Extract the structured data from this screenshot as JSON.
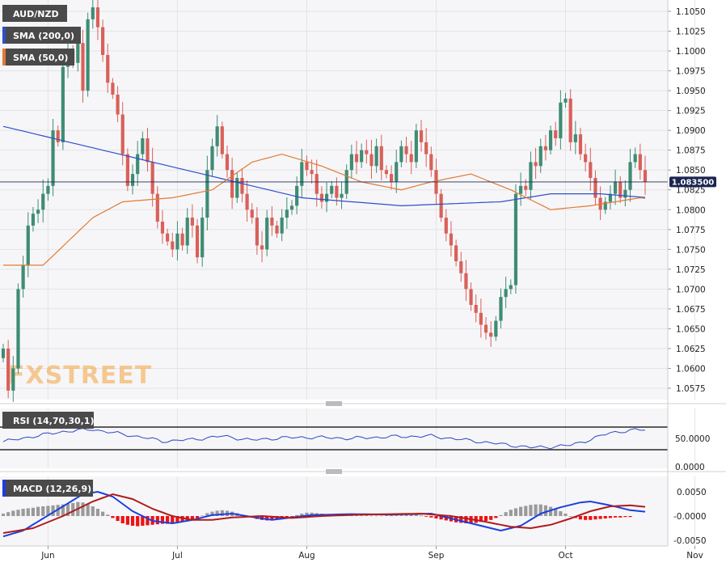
{
  "chart_data": {
    "type": "candlestick",
    "symbol": "AUD/NZD",
    "indicators": {
      "sma200_label": "SMA (200,0)",
      "sma50_label": "SMA (50,0)",
      "rsi_label": "RSI (14,70,30,1)",
      "macd_label": "MACD (12,26,9)"
    },
    "last_price_label": "1.083500",
    "last_price": 1.0835,
    "price_axis": {
      "min": 1.0555,
      "max": 1.1063,
      "ticks": [
        1.105,
        1.1025,
        1.1,
        1.0975,
        1.095,
        1.0925,
        1.09,
        1.0875,
        1.085,
        1.0825,
        1.08,
        1.0775,
        1.075,
        1.0725,
        1.07,
        1.0675,
        1.065,
        1.0625,
        1.06,
        1.0575
      ],
      "tick_labels": [
        "1.1050",
        "1.1025",
        "1.1000",
        "1.0975",
        "1.0950",
        "1.0925",
        "1.0900",
        "1.0875",
        "1.0850",
        "1.0825",
        "1.0800",
        "1.0775",
        "1.0750",
        "1.0725",
        "1.0700",
        "1.0675",
        "1.0650",
        "1.0625",
        "1.0600",
        "1.0575"
      ]
    },
    "x_axis": {
      "labels": [
        "Jun",
        "Jul",
        "Aug",
        "Sep",
        "Oct",
        "Nov"
      ],
      "label_bar_index": [
        9,
        35,
        61,
        87,
        113,
        139
      ]
    },
    "closes": [
      1.0625,
      1.0572,
      1.06,
      1.07,
      1.073,
      1.078,
      1.0795,
      1.08,
      1.082,
      1.083,
      1.09,
      1.0885,
      1.098,
      1.1,
      1.0985,
      1.101,
      1.095,
      1.104,
      1.1055,
      1.103,
      1.0995,
      1.096,
      1.0945,
      1.092,
      1.087,
      1.083,
      1.0845,
      1.087,
      1.089,
      1.086,
      1.082,
      1.0785,
      1.077,
      1.076,
      1.075,
      1.077,
      1.0755,
      1.079,
      1.078,
      1.074,
      1.079,
      1.085,
      1.088,
      1.0905,
      1.087,
      1.085,
      1.0815,
      1.084,
      1.082,
      1.08,
      1.079,
      1.0755,
      1.075,
      1.079,
      1.078,
      1.077,
      1.079,
      1.08,
      1.0805,
      1.083,
      1.086,
      1.085,
      1.0845,
      1.082,
      1.081,
      1.082,
      1.083,
      1.0815,
      1.082,
      1.085,
      1.087,
      1.086,
      1.0875,
      1.087,
      1.0855,
      1.088,
      1.085,
      1.0845,
      1.0835,
      1.086,
      1.088,
      1.087,
      1.086,
      1.09,
      1.0885,
      1.087,
      1.085,
      1.082,
      1.079,
      1.077,
      1.0755,
      1.0735,
      1.072,
      1.07,
      1.068,
      1.067,
      1.0655,
      1.0645,
      1.064,
      1.066,
      1.069,
      1.07,
      1.0705,
      1.082,
      1.083,
      1.0825,
      1.086,
      1.0855,
      1.088,
      1.0875,
      1.09,
      1.089,
      1.0935,
      1.094,
      1.0885,
      1.0895,
      1.087,
      1.086,
      1.084,
      1.0815,
      1.08,
      1.081,
      1.082,
      1.0835,
      1.0815,
      1.0825,
      1.086,
      1.087,
      1.085,
      1.0835
    ],
    "sma200_anchors": [
      [
        0,
        1.0905
      ],
      [
        20,
        1.0875
      ],
      [
        40,
        1.0845
      ],
      [
        60,
        1.0815
      ],
      [
        80,
        1.0805
      ],
      [
        100,
        1.081
      ],
      [
        110,
        1.082
      ],
      [
        120,
        1.082
      ],
      [
        130,
        1.0815
      ],
      [
        140,
        1.0812
      ],
      [
        148,
        1.081
      ]
    ],
    "sma50_anchors": [
      [
        0,
        1.073
      ],
      [
        8,
        1.073
      ],
      [
        18,
        1.079
      ],
      [
        24,
        1.081
      ],
      [
        34,
        1.0815
      ],
      [
        42,
        1.0825
      ],
      [
        50,
        1.086
      ],
      [
        56,
        1.087
      ],
      [
        64,
        1.0855
      ],
      [
        72,
        1.0835
      ],
      [
        80,
        1.0825
      ],
      [
        86,
        1.0835
      ],
      [
        94,
        1.0845
      ],
      [
        102,
        1.0825
      ],
      [
        110,
        1.08
      ],
      [
        118,
        1.0805
      ],
      [
        128,
        1.0815
      ],
      [
        136,
        1.081
      ],
      [
        142,
        1.0805
      ],
      [
        148,
        1.0805
      ]
    ],
    "rsi": {
      "axis_labels": [
        "50.0000",
        "0.0000"
      ],
      "overbought": 70,
      "oversold": 30,
      "anchors": [
        [
          0,
          44
        ],
        [
          5,
          52
        ],
        [
          12,
          62
        ],
        [
          18,
          66
        ],
        [
          22,
          60
        ],
        [
          28,
          52
        ],
        [
          32,
          45
        ],
        [
          38,
          48
        ],
        [
          44,
          54
        ],
        [
          50,
          47
        ],
        [
          56,
          51
        ],
        [
          62,
          52
        ],
        [
          70,
          50
        ],
        [
          78,
          53
        ],
        [
          86,
          54
        ],
        [
          94,
          46
        ],
        [
          100,
          40
        ],
        [
          106,
          34
        ],
        [
          110,
          35
        ],
        [
          114,
          38
        ],
        [
          118,
          48
        ],
        [
          122,
          60
        ],
        [
          126,
          64
        ],
        [
          130,
          66
        ],
        [
          134,
          62
        ],
        [
          138,
          56
        ],
        [
          142,
          50
        ],
        [
          146,
          51
        ],
        [
          148,
          50
        ]
      ]
    },
    "macd": {
      "axis_labels": [
        "0.0050",
        "-0.0000",
        "-0.0050"
      ],
      "zero_label": "-0.0000",
      "histogram": [
        0.0005,
        0.0008,
        0.0011,
        0.0013,
        0.0015,
        0.0016,
        0.0017,
        0.0019,
        0.002,
        0.0021,
        0.0022,
        0.0023,
        0.0024,
        0.0026,
        0.0027,
        0.0029,
        0.0028,
        0.0025,
        0.002,
        0.0015,
        0.0009,
        0.0003,
        -0.0004,
        -0.001,
        -0.0015,
        -0.0018,
        -0.002,
        -0.0021,
        -0.002,
        -0.0019,
        -0.0018,
        -0.0017,
        -0.0016,
        -0.0016,
        -0.0015,
        -0.0013,
        -0.0011,
        -0.0009,
        -0.0007,
        -0.0004,
        0.0001,
        0.0006,
        0.0009,
        0.0011,
        0.0012,
        0.0011,
        0.0009,
        0.0006,
        0.0003,
        0.0,
        -0.0003,
        -0.0006,
        -0.0008,
        -0.0009,
        -0.0008,
        -0.0007,
        -0.0005,
        -0.0003,
        -0.0001,
        0.0002,
        0.0005,
        0.0007,
        0.0007,
        0.0006,
        0.0005,
        0.0004,
        0.0004,
        0.0004,
        0.0003,
        0.0003,
        0.0003,
        0.0002,
        0.0002,
        0.0002,
        0.0001,
        0.0001,
        0.0001,
        0.0002,
        0.0002,
        0.0003,
        0.0003,
        0.0004,
        0.0004,
        0.0003,
        0.0001,
        -0.0001,
        -0.0003,
        -0.0005,
        -0.0007,
        -0.0009,
        -0.0011,
        -0.0013,
        -0.0014,
        -0.0015,
        -0.0015,
        -0.0014,
        -0.0012,
        -0.001,
        -0.0008,
        -0.0004,
        0.0002,
        0.0008,
        0.0013,
        0.0016,
        0.0019,
        0.0021,
        0.0023,
        0.0024,
        0.0024,
        0.0022,
        0.0019,
        0.0015,
        0.001,
        0.0005,
        0.0,
        -0.0004,
        -0.0007,
        -0.0008,
        -0.0008,
        -0.0007,
        -0.0006,
        -0.0005,
        -0.0004,
        -0.0003,
        -0.0003,
        -0.0002,
        -0.0002
      ],
      "macd_anchors": [
        [
          0,
          -0.0042
        ],
        [
          4,
          -0.003
        ],
        [
          8,
          -0.0005
        ],
        [
          12,
          0.002
        ],
        [
          16,
          0.0045
        ],
        [
          19,
          0.005
        ],
        [
          22,
          0.004
        ],
        [
          26,
          0.001
        ],
        [
          30,
          -0.001
        ],
        [
          34,
          -0.0015
        ],
        [
          38,
          -0.0008
        ],
        [
          42,
          0.0002
        ],
        [
          46,
          0.0005
        ],
        [
          50,
          -0.0002
        ],
        [
          54,
          -0.0008
        ],
        [
          58,
          -0.0003
        ],
        [
          62,
          0.0002
        ],
        [
          70,
          0.0004
        ],
        [
          78,
          0.0003
        ],
        [
          86,
          0.0005
        ],
        [
          90,
          -0.0005
        ],
        [
          96,
          -0.002
        ],
        [
          100,
          -0.003
        ],
        [
          104,
          -0.002
        ],
        [
          108,
          0.0005
        ],
        [
          112,
          0.0018
        ],
        [
          116,
          0.0028
        ],
        [
          118,
          0.003
        ],
        [
          122,
          0.0022
        ],
        [
          126,
          0.0012
        ],
        [
          130,
          0.0008
        ],
        [
          134,
          0.001
        ],
        [
          140,
          0.0008
        ],
        [
          148,
          0.0005
        ]
      ],
      "signal_anchors": [
        [
          0,
          -0.0035
        ],
        [
          6,
          -0.0025
        ],
        [
          12,
          0.0
        ],
        [
          18,
          0.003
        ],
        [
          22,
          0.0045
        ],
        [
          26,
          0.0035
        ],
        [
          30,
          0.0015
        ],
        [
          34,
          0.0
        ],
        [
          38,
          -0.0008
        ],
        [
          42,
          -0.0008
        ],
        [
          46,
          -0.0003
        ],
        [
          52,
          0.0
        ],
        [
          58,
          -0.0004
        ],
        [
          64,
          0.0
        ],
        [
          72,
          0.0003
        ],
        [
          84,
          0.0005
        ],
        [
          90,
          0.0
        ],
        [
          96,
          -0.001
        ],
        [
          102,
          -0.0022
        ],
        [
          106,
          -0.0025
        ],
        [
          110,
          -0.0018
        ],
        [
          114,
          -0.0005
        ],
        [
          118,
          0.001
        ],
        [
          122,
          0.002
        ],
        [
          126,
          0.0022
        ],
        [
          130,
          0.0018
        ],
        [
          136,
          0.0014
        ],
        [
          142,
          0.001
        ],
        [
          148,
          0.0008
        ]
      ]
    },
    "colors": {
      "up": "#3e8c74",
      "down": "#d9605a",
      "sma200": "#2f4fc9",
      "sma50": "#e27a32",
      "rsi_line": "#2b45c8",
      "macd_line": "#1a3fe0",
      "signal_line": "#b01c1c",
      "hist_pos": "#9a9a9a",
      "hist_neg": "#ee1111",
      "label_bg": "#4a4a4a",
      "watermark": "#f2a23a"
    },
    "watermark_text": "FXSTREET"
  }
}
